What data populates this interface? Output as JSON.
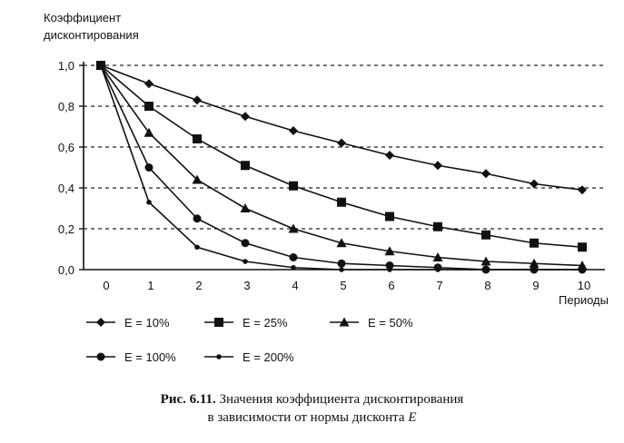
{
  "chart_data": {
    "type": "line",
    "title": "",
    "ylabel": [
      "Коэффициент",
      "дисконтирования"
    ],
    "xlabel": "Периоды",
    "x": [
      0,
      1,
      2,
      3,
      4,
      5,
      6,
      7,
      8,
      9,
      10
    ],
    "xticks": [
      "0",
      "1",
      "2",
      "3",
      "4",
      "5",
      "6",
      "7",
      "8",
      "9",
      "10"
    ],
    "yticks": [
      "0,0",
      "0,2",
      "0,4",
      "0,6",
      "0,8",
      "1,0"
    ],
    "ytick_values": [
      0,
      0.2,
      0.4,
      0.6,
      0.8,
      1.0
    ],
    "xlim": [
      0,
      10
    ],
    "ylim": [
      0,
      1.0
    ],
    "grid": "horizontal-dashed",
    "series": [
      {
        "name": "E = 10%",
        "marker": "diamond",
        "values": [
          1.0,
          0.91,
          0.83,
          0.75,
          0.68,
          0.62,
          0.56,
          0.51,
          0.47,
          0.42,
          0.39
        ]
      },
      {
        "name": "E = 25%",
        "marker": "square",
        "values": [
          1.0,
          0.8,
          0.64,
          0.51,
          0.41,
          0.33,
          0.26,
          0.21,
          0.17,
          0.13,
          0.11
        ]
      },
      {
        "name": "E = 50%",
        "marker": "triangle",
        "values": [
          1.0,
          0.67,
          0.44,
          0.3,
          0.2,
          0.13,
          0.09,
          0.06,
          0.04,
          0.03,
          0.02
        ]
      },
      {
        "name": "E = 100%",
        "marker": "circle",
        "values": [
          1.0,
          0.5,
          0.25,
          0.13,
          0.06,
          0.03,
          0.02,
          0.01,
          0.0,
          0.0,
          0.0
        ]
      },
      {
        "name": "E = 200%",
        "marker": "dot",
        "values": [
          1.0,
          0.33,
          0.11,
          0.04,
          0.01,
          0.0,
          0.0,
          0.0,
          0.0,
          0.0,
          0.0
        ]
      }
    ],
    "legend_position": "bottom"
  },
  "caption": {
    "line1_bold": "Рис. 6.11.",
    "line1": " Значения коэффициента дисконтирования",
    "line2": "в зависимости от нормы дисконта ",
    "line2_var": "E"
  }
}
